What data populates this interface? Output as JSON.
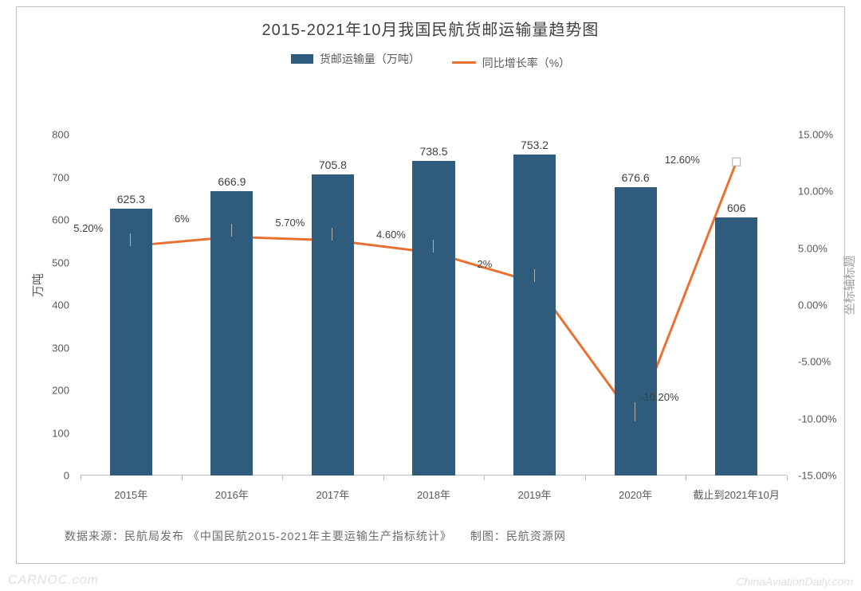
{
  "chart": {
    "type": "bar+line",
    "title": "2015-2021年10月我国民航货邮运输量趋势图",
    "title_fontsize": 20,
    "title_color": "#404040",
    "background_color": "#ffffff",
    "border_color": "#bfbfbf",
    "legend": {
      "bar_label": "货邮运输量（万吨）",
      "line_label": "同比增长率（%）",
      "bar_color": "#2f5b7c",
      "line_color": "#e97132",
      "fontsize": 14
    },
    "categories": [
      "2015年",
      "2016年",
      "2017年",
      "2018年",
      "2019年",
      "2020年",
      "截止到2021年10月"
    ],
    "bars": {
      "values": [
        625.3,
        666.9,
        705.8,
        738.5,
        753.2,
        676.6,
        606
      ],
      "value_labels": [
        "625.3",
        "666.9",
        "705.8",
        "738.5",
        "753.2",
        "676.6",
        "606"
      ],
      "color": "#2f5b7c",
      "width_ratio": 0.42,
      "label_fontsize": 14,
      "label_color": "#404040"
    },
    "line": {
      "values": [
        5.2,
        6.0,
        5.7,
        4.6,
        2.0,
        -10.2,
        12.6
      ],
      "value_labels": [
        "5.20%",
        "6%",
        "5.70%",
        "4.60%",
        "2%",
        "-10.20%",
        "12.60%"
      ],
      "color": "#e97132",
      "stroke_width": 3,
      "last_marker": true
    },
    "y_left": {
      "label": "万吨",
      "min": 0,
      "max": 800,
      "step": 100,
      "ticks": [
        0,
        100,
        200,
        300,
        400,
        500,
        600,
        700,
        800
      ],
      "fontsize": 13,
      "color": "#595959"
    },
    "y_right": {
      "label": "坐标轴标题",
      "min": -15,
      "max": 15,
      "step": 5,
      "ticks": [
        "-15.00%",
        "-10.00%",
        "-5.00%",
        "0.00%",
        "5.00%",
        "10.00%",
        "15.00%"
      ],
      "tick_values": [
        -15,
        -10,
        -5,
        0,
        5,
        10,
        15
      ],
      "fontsize": 13,
      "color": "#595959"
    },
    "source": "数据来源：民航局发布 《中国民航2015-2021年主要运输生产指标统计》　　制图：民航资源网",
    "watermark_left": "CARNOC.com",
    "watermark_right": "ChinaAviationDaily.com"
  }
}
